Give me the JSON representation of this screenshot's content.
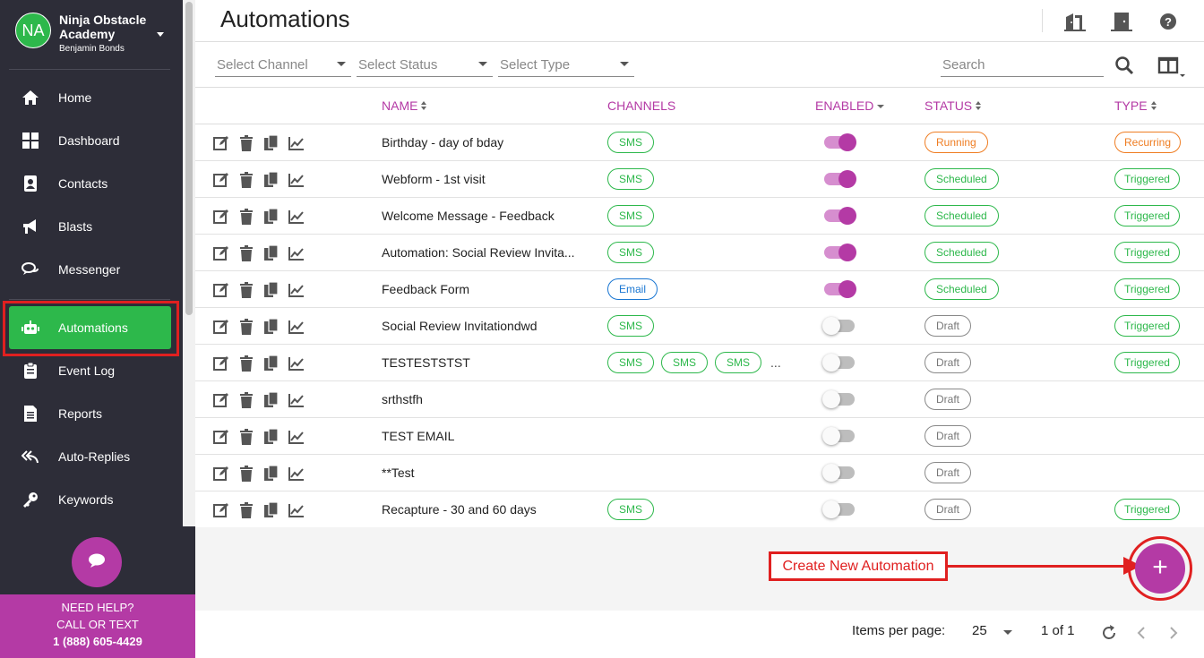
{
  "account": {
    "initials": "NA",
    "name": "Ninja Obstacle Academy",
    "user": "Benjamin Bonds"
  },
  "nav": [
    {
      "label": "Home",
      "icon": "home-icon"
    },
    {
      "label": "Dashboard",
      "icon": "dashboard-icon"
    },
    {
      "label": "Contacts",
      "icon": "contacts-icon"
    },
    {
      "label": "Blasts",
      "icon": "megaphone-icon"
    },
    {
      "label": "Messenger",
      "icon": "chat-bubbles-icon"
    },
    {
      "label": "Automations",
      "icon": "robot-icon",
      "active": true
    },
    {
      "label": "Event Log",
      "icon": "clipboard-icon"
    },
    {
      "label": "Reports",
      "icon": "document-icon"
    },
    {
      "label": "Auto-Replies",
      "icon": "reply-all-icon"
    },
    {
      "label": "Keywords",
      "icon": "key-icon"
    }
  ],
  "help": {
    "line1": "NEED HELP?",
    "line2": "CALL OR TEXT",
    "phone": "1 (888) 605-4429"
  },
  "page": {
    "title": "Automations"
  },
  "filters": {
    "channel": "Select Channel",
    "status": "Select Status",
    "type": "Select Type",
    "search_placeholder": "Search"
  },
  "columns": {
    "name": "NAME",
    "channels": "CHANNELS",
    "enabled": "ENABLED",
    "status": "STATUS",
    "type": "TYPE"
  },
  "rows": [
    {
      "name": "Birthday - day of bday",
      "channels": [
        "SMS"
      ],
      "enabled": true,
      "status": "Running",
      "type": "Recurring"
    },
    {
      "name": "Webform - 1st visit",
      "channels": [
        "SMS"
      ],
      "enabled": true,
      "status": "Scheduled",
      "type": "Triggered"
    },
    {
      "name": "Welcome Message - Feedback",
      "channels": [
        "SMS"
      ],
      "enabled": true,
      "status": "Scheduled",
      "type": "Triggered"
    },
    {
      "name": "Automation: Social Review Invita...",
      "channels": [
        "SMS"
      ],
      "enabled": true,
      "status": "Scheduled",
      "type": "Triggered"
    },
    {
      "name": "Feedback Form",
      "channels": [
        "Email"
      ],
      "enabled": true,
      "status": "Scheduled",
      "type": "Triggered"
    },
    {
      "name": "Social Review Invitationdwd",
      "channels": [
        "SMS"
      ],
      "enabled": false,
      "status": "Draft",
      "type": "Triggered"
    },
    {
      "name": "TESTESTSTST",
      "channels": [
        "SMS",
        "SMS",
        "SMS"
      ],
      "more": "...",
      "enabled": false,
      "status": "Draft",
      "type": "Triggered"
    },
    {
      "name": "srthstfh",
      "channels": [],
      "enabled": false,
      "status": "Draft",
      "type": ""
    },
    {
      "name": "TEST EMAIL",
      "channels": [],
      "enabled": false,
      "status": "Draft",
      "type": ""
    },
    {
      "name": "**Test",
      "channels": [],
      "enabled": false,
      "status": "Draft",
      "type": ""
    },
    {
      "name": "Recapture - 30 and 60 days",
      "channels": [
        "SMS"
      ],
      "enabled": false,
      "status": "Draft",
      "type": "Triggered"
    }
  ],
  "annotation": {
    "label": "Create New Automation"
  },
  "add_button": {
    "symbol": "+"
  },
  "pagination": {
    "items_label": "Items per page:",
    "per_page": "25",
    "range": "1 of 1"
  },
  "colors": {
    "sidebar": "#2d2d38",
    "active": "#2db84b",
    "accent": "#b43aa5",
    "annotation": "#e02020"
  }
}
